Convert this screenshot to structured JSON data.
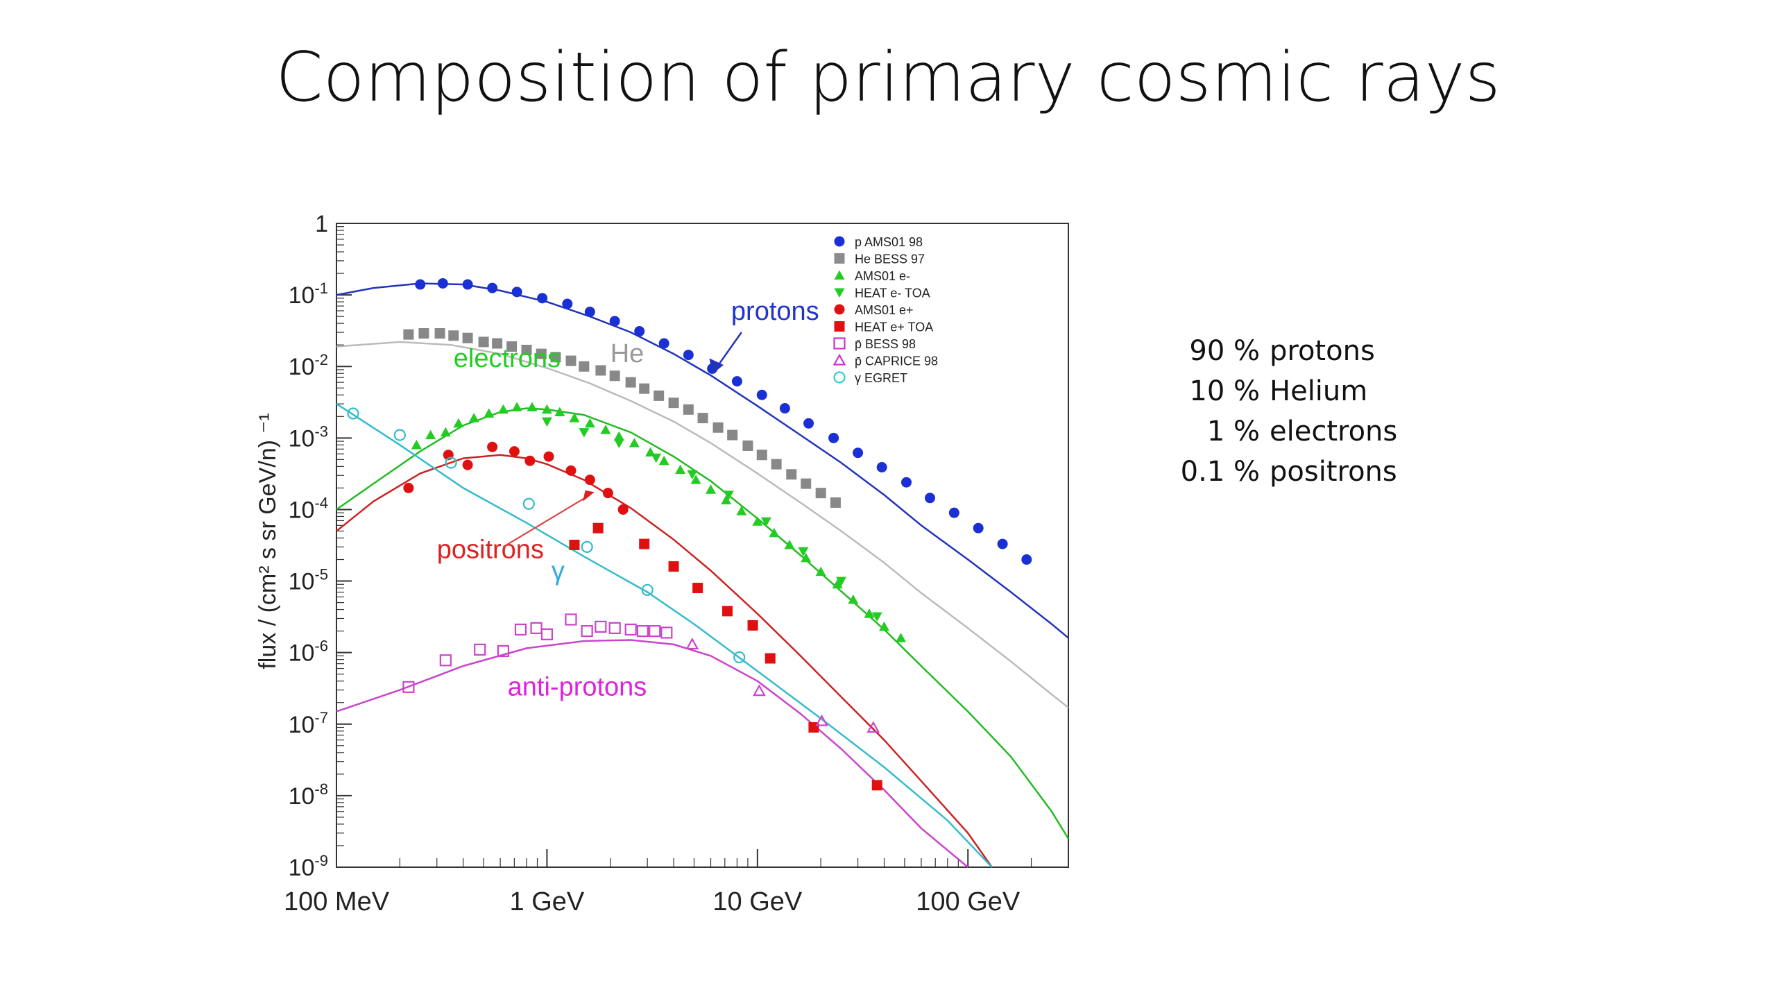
{
  "slide": {
    "title": "Composition of primary cosmic rays"
  },
  "composition": [
    {
      "percent": "90 %",
      "label": "protons"
    },
    {
      "percent": "10 %",
      "label": "Helium"
    },
    {
      "percent": "1 %",
      "label": "electrons"
    },
    {
      "percent": "0.1 %",
      "label": "positrons"
    }
  ],
  "chart_data": {
    "type": "scatter",
    "ylabel": "flux / (cm² s sr GeV/n) ⁻¹",
    "xscale": "log",
    "yscale": "log",
    "xlim": [
      0.1,
      300
    ],
    "ylim": [
      1e-09,
      1
    ],
    "x_ticks": [
      {
        "value": 0.1,
        "label": "100 MeV"
      },
      {
        "value": 1,
        "label": "1 GeV"
      },
      {
        "value": 10,
        "label": "10 GeV"
      },
      {
        "value": 100,
        "label": "100 GeV"
      }
    ],
    "y_ticks": [
      {
        "exp": 0,
        "base": "1",
        "sup": ""
      },
      {
        "exp": -1,
        "base": "10",
        "sup": "-1"
      },
      {
        "exp": -2,
        "base": "10",
        "sup": "-2"
      },
      {
        "exp": -3,
        "base": "10",
        "sup": "-3"
      },
      {
        "exp": -4,
        "base": "10",
        "sup": "-4"
      },
      {
        "exp": -5,
        "base": "10",
        "sup": "-5"
      },
      {
        "exp": -6,
        "base": "10",
        "sup": "-6"
      },
      {
        "exp": -7,
        "base": "10",
        "sup": "-7"
      },
      {
        "exp": -8,
        "base": "10",
        "sup": "-8"
      },
      {
        "exp": -9,
        "base": "10",
        "sup": "-9"
      }
    ],
    "legend_position": "top-right",
    "legend": [
      {
        "label": "p AMS01 98",
        "marker": "circle",
        "color": "#1a2fd4"
      },
      {
        "label": "He BESS 97",
        "marker": "square",
        "color": "#8c8c8c"
      },
      {
        "label": "AMS01 e-",
        "marker": "triangle-up",
        "color": "#22cc22"
      },
      {
        "label": "HEAT e- TOA",
        "marker": "triangle-down",
        "color": "#22cc22"
      },
      {
        "label": "AMS01 e+",
        "marker": "circle",
        "color": "#e01010"
      },
      {
        "label": "HEAT e+ TOA",
        "marker": "square",
        "color": "#e01010"
      },
      {
        "label": "p̄ BESS 98",
        "marker": "open-square",
        "color": "#cc33cc"
      },
      {
        "label": "p̄ CAPRICE 98",
        "marker": "open-triangle",
        "color": "#cc33cc"
      },
      {
        "label": "γ EGRET",
        "marker": "open-circle",
        "color": "#33cccc"
      }
    ],
    "curve_labels": [
      {
        "text": "protons",
        "color": "#2233cc",
        "x": 7.5,
        "y": 0.045
      },
      {
        "text": "He",
        "color": "#999999",
        "x": 2.0,
        "y": 0.0115
      },
      {
        "text": "electrons",
        "color": "#22cc22",
        "x": 0.36,
        "y": 0.0098
      },
      {
        "text": "positrons",
        "color": "#dd2222",
        "x": 0.3,
        "y": 2.1e-05
      },
      {
        "text": "γ",
        "color": "#33aadd",
        "x": 1.05,
        "y": 1.05e-05
      },
      {
        "text": "anti-protons",
        "color": "#dd22dd",
        "x": 0.65,
        "y": 2.5e-07
      }
    ],
    "series": [
      {
        "name": "protons",
        "color": "#2233bb",
        "marker": "circle",
        "fill": "#1a2fd4",
        "line": [
          [
            0.1,
            0.1
          ],
          [
            0.15,
            0.125
          ],
          [
            0.25,
            0.145
          ],
          [
            0.4,
            0.14
          ],
          [
            0.6,
            0.115
          ],
          [
            1,
            0.08
          ],
          [
            1.6,
            0.05
          ],
          [
            2.5,
            0.03
          ],
          [
            4,
            0.015
          ],
          [
            6,
            0.0075
          ],
          [
            10,
            0.0028
          ],
          [
            16,
            0.0011
          ],
          [
            25,
            0.00045
          ],
          [
            40,
            0.00016
          ],
          [
            60,
            6e-05
          ],
          [
            100,
            2e-05
          ],
          [
            160,
            7e-06
          ],
          [
            250,
            2.5e-06
          ],
          [
            300,
            1.6e-06
          ]
        ],
        "points": [
          [
            0.25,
            0.14
          ],
          [
            0.32,
            0.145
          ],
          [
            0.42,
            0.14
          ],
          [
            0.55,
            0.125
          ],
          [
            0.72,
            0.11
          ],
          [
            0.95,
            0.09
          ],
          [
            1.25,
            0.075
          ],
          [
            1.6,
            0.058
          ],
          [
            2.1,
            0.043
          ],
          [
            2.75,
            0.031
          ],
          [
            3.6,
            0.021
          ],
          [
            4.7,
            0.0145
          ],
          [
            6.1,
            0.0093
          ],
          [
            8.0,
            0.0062
          ],
          [
            10.5,
            0.004
          ],
          [
            13.5,
            0.0026
          ],
          [
            17.5,
            0.0016
          ],
          [
            23,
            0.001
          ],
          [
            30,
            0.00062
          ],
          [
            39,
            0.00039
          ],
          [
            51,
            0.00024
          ],
          [
            66,
            0.000145
          ],
          [
            86,
            9e-05
          ],
          [
            112,
            5.5e-05
          ],
          [
            146,
            3.3e-05
          ],
          [
            190,
            2e-05
          ]
        ]
      },
      {
        "name": "He",
        "color": "#bbbbbb",
        "marker": "square",
        "fill": "#888888",
        "line": [
          [
            0.1,
            0.019
          ],
          [
            0.2,
            0.022
          ],
          [
            0.35,
            0.02
          ],
          [
            0.6,
            0.015
          ],
          [
            1,
            0.0095
          ],
          [
            1.6,
            0.0058
          ],
          [
            2.5,
            0.0033
          ],
          [
            4,
            0.0017
          ],
          [
            6,
            0.00085
          ],
          [
            10,
            0.00032
          ],
          [
            16,
            0.000125
          ],
          [
            25,
            5e-05
          ],
          [
            40,
            1.8e-05
          ],
          [
            60,
            6.8e-06
          ],
          [
            100,
            2.2e-06
          ],
          [
            160,
            7.5e-07
          ],
          [
            250,
            2.6e-07
          ],
          [
            300,
            1.7e-07
          ]
        ],
        "points": [
          [
            0.22,
            0.028
          ],
          [
            0.26,
            0.029
          ],
          [
            0.31,
            0.029
          ],
          [
            0.36,
            0.027
          ],
          [
            0.42,
            0.025
          ],
          [
            0.5,
            0.022
          ],
          [
            0.58,
            0.021
          ],
          [
            0.68,
            0.019
          ],
          [
            0.8,
            0.017
          ],
          [
            0.94,
            0.015
          ],
          [
            1.1,
            0.0135
          ],
          [
            1.3,
            0.012
          ],
          [
            1.5,
            0.01
          ],
          [
            1.8,
            0.0088
          ],
          [
            2.1,
            0.0074
          ],
          [
            2.5,
            0.006
          ],
          [
            2.9,
            0.0049
          ],
          [
            3.4,
            0.0039
          ],
          [
            4.0,
            0.0031
          ],
          [
            4.7,
            0.0025
          ],
          [
            5.5,
            0.0019
          ],
          [
            6.5,
            0.0014
          ],
          [
            7.6,
            0.0011
          ],
          [
            9,
            0.00078
          ],
          [
            10.5,
            0.00058
          ],
          [
            12.3,
            0.00043
          ],
          [
            14.5,
            0.00031
          ],
          [
            17,
            0.00023
          ],
          [
            20,
            0.00017
          ],
          [
            23.5,
            0.000125
          ]
        ]
      },
      {
        "name": "electrons",
        "color": "#22bb22",
        "marker": "triangle",
        "fill": "#22cc22",
        "line": [
          [
            0.1,
            0.0001
          ],
          [
            0.15,
            0.00023
          ],
          [
            0.25,
            0.00065
          ],
          [
            0.4,
            0.0015
          ],
          [
            0.6,
            0.0023
          ],
          [
            0.8,
            0.0026
          ],
          [
            1,
            0.0025
          ],
          [
            1.5,
            0.0021
          ],
          [
            2.5,
            0.0012
          ],
          [
            4,
            0.00055
          ],
          [
            6,
            0.00025
          ],
          [
            10,
            7.5e-05
          ],
          [
            16,
            2.3e-05
          ],
          [
            25,
            7.2e-06
          ],
          [
            40,
            2.1e-06
          ],
          [
            60,
            6.5e-07
          ],
          [
            100,
            1.5e-07
          ],
          [
            160,
            3.5e-08
          ],
          [
            250,
            6e-09
          ],
          [
            300,
            2.5e-09
          ]
        ],
        "points": [
          [
            0.24,
            0.0008
          ],
          [
            0.28,
            0.0011
          ],
          [
            0.33,
            0.0012
          ],
          [
            0.38,
            0.0016
          ],
          [
            0.45,
            0.0019
          ],
          [
            0.53,
            0.0022
          ],
          [
            0.62,
            0.0025
          ],
          [
            0.72,
            0.0027
          ],
          [
            0.85,
            0.0027
          ],
          [
            1.0,
            0.0025
          ],
          [
            1.15,
            0.0023
          ],
          [
            1.35,
            0.0019
          ],
          [
            1.6,
            0.0016
          ],
          [
            1.9,
            0.0013
          ],
          [
            2.2,
            0.00105
          ],
          [
            2.6,
            0.00085
          ],
          [
            3.1,
            0.00063
          ],
          [
            3.6,
            0.00048
          ],
          [
            4.3,
            0.00036
          ],
          [
            5.1,
            0.00026
          ],
          [
            6.0,
            0.00019
          ],
          [
            7.1,
            0.000135
          ],
          [
            8.4,
            9.5e-05
          ],
          [
            10,
            6.8e-05
          ],
          [
            12,
            4.7e-05
          ],
          [
            14.2,
            3.2e-05
          ],
          [
            17,
            2.1e-05
          ],
          [
            20,
            1.35e-05
          ],
          [
            24,
            9e-06
          ],
          [
            28.5,
            5.5e-06
          ],
          [
            34,
            3.5e-06
          ],
          [
            40,
            2.3e-06
          ],
          [
            48,
            1.6e-06
          ]
        ],
        "points_down": [
          [
            1.0,
            0.0017
          ],
          [
            1.5,
            0.0012
          ],
          [
            2.2,
            0.00085
          ],
          [
            3.3,
            0.00053
          ],
          [
            4.9,
            0.00031
          ],
          [
            7.3,
            0.00016
          ],
          [
            11,
            6.8e-05
          ],
          [
            16.5,
            2.6e-05
          ],
          [
            25,
            1e-05
          ],
          [
            37,
            3.2e-06
          ]
        ]
      },
      {
        "name": "positrons",
        "color": "#cc2222",
        "marker": "circle",
        "fill": "#e01010",
        "line": [
          [
            0.1,
            5e-05
          ],
          [
            0.15,
            0.00013
          ],
          [
            0.25,
            0.00032
          ],
          [
            0.4,
            0.00052
          ],
          [
            0.6,
            0.00058
          ],
          [
            0.8,
            0.00052
          ],
          [
            1,
            0.00043
          ],
          [
            1.5,
            0.00026
          ],
          [
            2.5,
            0.000105
          ],
          [
            4,
            3.8e-05
          ],
          [
            6,
            1.4e-05
          ],
          [
            10,
            3.5e-06
          ],
          [
            16,
            9e-07
          ],
          [
            25,
            2.4e-07
          ],
          [
            40,
            6e-08
          ],
          [
            60,
            1.6e-08
          ],
          [
            100,
            3e-09
          ],
          [
            130,
            1e-09
          ]
        ],
        "points": [
          [
            0.22,
            0.0002
          ],
          [
            0.34,
            0.00058
          ],
          [
            0.42,
            0.00042
          ],
          [
            0.55,
            0.00075
          ],
          [
            0.7,
            0.00065
          ],
          [
            0.83,
            0.00048
          ],
          [
            1.02,
            0.00055
          ],
          [
            1.3,
            0.00035
          ],
          [
            1.6,
            0.00026
          ],
          [
            1.95,
            0.00017
          ],
          [
            2.3,
            0.0001
          ]
        ],
        "points_square": [
          [
            1.35,
            3.2e-05
          ],
          [
            1.75,
            5.5e-05
          ],
          [
            2.9,
            3.3e-05
          ],
          [
            4.0,
            1.6e-05
          ],
          [
            5.2,
            8e-06
          ],
          [
            7.2,
            3.8e-06
          ],
          [
            9.5,
            2.4e-06
          ],
          [
            11.5,
            8.3e-07
          ],
          [
            18.5,
            9e-08
          ],
          [
            37,
            1.4e-08
          ]
        ]
      },
      {
        "name": "γ",
        "color": "#33bbcc",
        "marker": "open-circle",
        "fill": "none",
        "line": [
          [
            0.1,
            0.003
          ],
          [
            0.2,
            0.0008
          ],
          [
            0.4,
            0.0002
          ],
          [
            0.8,
            6.5e-05
          ],
          [
            1.5,
            2.2e-05
          ],
          [
            3,
            7e-06
          ],
          [
            5,
            2.5e-06
          ],
          [
            10,
            5.5e-07
          ],
          [
            20,
            1.2e-07
          ],
          [
            40,
            2.5e-08
          ],
          [
            80,
            4.5e-09
          ],
          [
            130,
            1e-09
          ]
        ],
        "points": [
          [
            0.12,
            0.0022
          ],
          [
            0.2,
            0.0011
          ],
          [
            0.35,
            0.00045
          ],
          [
            0.82,
            0.00012
          ],
          [
            1.55,
            3e-05
          ],
          [
            3.0,
            7.5e-06
          ],
          [
            8.2,
            8.6e-07
          ]
        ]
      },
      {
        "name": "anti-protons",
        "color": "#cc44cc",
        "marker": "open-square",
        "fill": "none",
        "line": [
          [
            0.1,
            1.5e-07
          ],
          [
            0.2,
            3e-07
          ],
          [
            0.4,
            6.5e-07
          ],
          [
            0.8,
            1.15e-06
          ],
          [
            1.5,
            1.45e-06
          ],
          [
            2.5,
            1.5e-06
          ],
          [
            4,
            1.3e-06
          ],
          [
            6,
            9e-07
          ],
          [
            10,
            4e-07
          ],
          [
            16,
            1.4e-07
          ],
          [
            25,
            4.5e-08
          ],
          [
            40,
            1.2e-08
          ],
          [
            60,
            3.5e-09
          ],
          [
            100,
            1e-09
          ]
        ],
        "points": [
          [
            0.22,
            3.3e-07
          ],
          [
            0.33,
            7.8e-07
          ],
          [
            0.48,
            1.1e-06
          ],
          [
            0.62,
            1.05e-06
          ],
          [
            0.75,
            2.1e-06
          ],
          [
            0.89,
            2.2e-06
          ],
          [
            1.0,
            1.8e-06
          ],
          [
            1.3,
            2.9e-06
          ],
          [
            1.55,
            2e-06
          ],
          [
            1.8,
            2.3e-06
          ],
          [
            2.1,
            2.2e-06
          ],
          [
            2.5,
            2.1e-06
          ],
          [
            2.85,
            2e-06
          ],
          [
            3.25,
            2e-06
          ],
          [
            3.7,
            1.9e-06
          ]
        ],
        "points_triangle": [
          [
            4.9,
            1.3e-06
          ],
          [
            10.2,
            2.9e-07
          ],
          [
            20.2,
            1.1e-07
          ],
          [
            35.5,
            8.9e-08
          ]
        ]
      }
    ]
  }
}
